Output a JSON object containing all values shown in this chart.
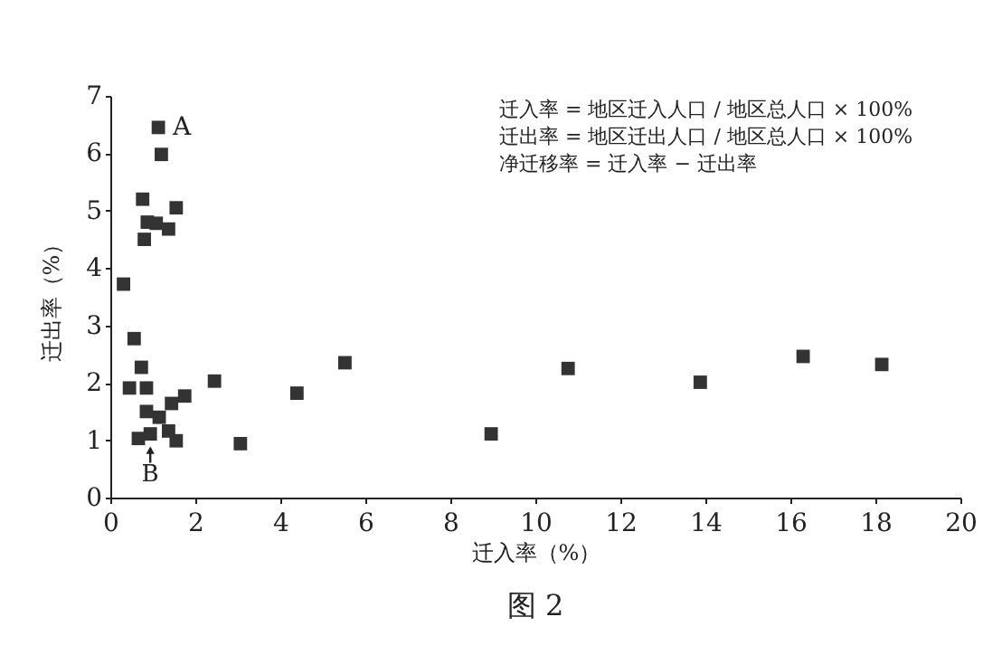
{
  "chart_data": {
    "type": "scatter",
    "title": "图 2",
    "xlabel": "迁入率（%）",
    "ylabel": "迁出率（%）",
    "x": [
      1.13,
      1.2,
      0.76,
      1.55,
      0.87,
      1.08,
      1.37,
      0.8,
      0.31,
      0.56,
      0.73,
      0.45,
      0.85,
      2.45,
      1.75,
      1.44,
      0.85,
      1.15,
      0.66,
      0.94,
      1.37,
      1.55,
      3.06,
      4.39,
      5.52,
      8.96,
      10.77,
      13.88,
      16.3,
      18.15
    ],
    "series": [
      {
        "color": "#333333",
        "values": [
          6.45,
          5.98,
          5.2,
          5.05,
          4.8,
          4.78,
          4.68,
          4.5,
          3.72,
          2.77,
          2.27,
          1.91,
          1.91,
          2.03,
          1.77,
          1.64,
          1.5,
          1.4,
          1.03,
          1.11,
          1.16,
          0.99,
          0.94,
          1.82,
          2.35,
          1.11,
          2.25,
          2.01,
          2.46,
          2.32
        ]
      }
    ],
    "xlim": [
      0,
      20
    ],
    "xticks": [
      0,
      2,
      4,
      6,
      8,
      10,
      12,
      14,
      16,
      18,
      20
    ],
    "ylim": [
      0,
      7
    ],
    "yticks": [
      0,
      1,
      2,
      3,
      4,
      5,
      6,
      7
    ],
    "marker": "square",
    "grid": false,
    "annotations": [
      {
        "text": "A",
        "x": 1.13,
        "y": 6.45
      },
      {
        "text": "B",
        "x": 0.94,
        "y": 1.11
      },
      "迁入率 = 地区迁入人口 / 地区总人口 × 100%",
      "迁出率 = 地区迁出人口 / 地区总人口 × 100%",
      "净迁移率 = 迁入率 − 迁出率"
    ]
  }
}
